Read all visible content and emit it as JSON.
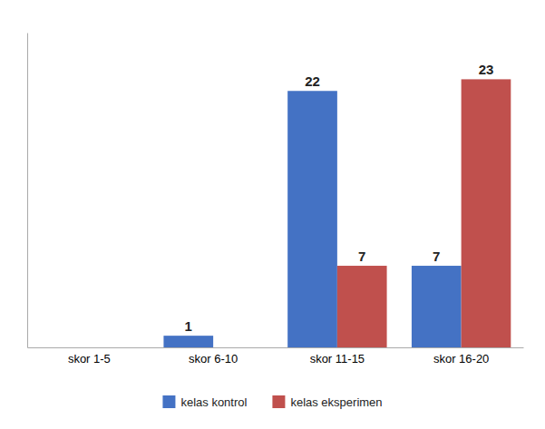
{
  "chart_data": {
    "type": "bar",
    "categories": [
      "skor 1-5",
      "skor 6-10",
      "skor 11-15",
      "skor 16-20"
    ],
    "series": [
      {
        "name": "kelas kontrol",
        "color": "#4472C4",
        "values": [
          0,
          1,
          22,
          7
        ]
      },
      {
        "name": "kelas eksperimen",
        "color": "#C0504D",
        "values": [
          0,
          0,
          7,
          23
        ]
      }
    ],
    "ylim": [
      0,
      27
    ],
    "data_labels": true,
    "tick_labels": "x",
    "grid": false,
    "legend": "bottom"
  }
}
